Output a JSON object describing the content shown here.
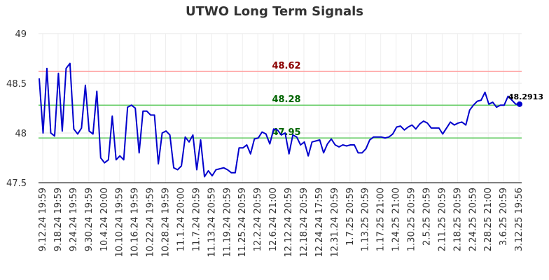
{
  "chart_data": {
    "type": "line",
    "title": "UTWO Long Term Signals",
    "xlabel": "",
    "ylabel": "",
    "ylim": [
      47.5,
      49
    ],
    "yticks": [
      "47.5",
      "48",
      "48.5",
      "49"
    ],
    "grid": true,
    "x_tick_labels": [
      "9.12.24 19:59",
      "9.18.24 19:59",
      "9.24.24 19:59",
      "9.30.24 19:59",
      "10.4.24 20:00",
      "10.10.24 19:59",
      "10.16.24 19:59",
      "10.22.24 19:59",
      "10.28.24 19:59",
      "11.1.24 20:00",
      "11.7.24 20:59",
      "11.13.24 20:59",
      "11.19.24 20:59",
      "11.25.24 20:59",
      "12.2.24 20:59",
      "12.6.24 21:00",
      "12.12.24 20:59",
      "12.18.24 20:59",
      "12.24.24 17:59",
      "12.31.24 20:59",
      "1.7.25 20:59",
      "1.13.25 20:59",
      "1.17.25 21:00",
      "1.24.25 21:00",
      "1.30.25 20:59",
      "2.5.25 20:59",
      "2.11.25 20:59",
      "2.18.25 20:59",
      "2.24.25 20:59",
      "2.28.25 21:00",
      "3.6.25 20:59",
      "3.12.25 19:56"
    ],
    "reference_lines": [
      {
        "label": "48.62",
        "value": 48.62,
        "color": "#ff9999",
        "text_color": "#8b0000"
      },
      {
        "label": "48.28",
        "value": 48.28,
        "color": "#66cc66",
        "text_color": "#006400"
      },
      {
        "label": "47.95",
        "value": 47.95,
        "color": "#66cc66",
        "text_color": "#006400"
      }
    ],
    "last_value_label": "48.2913",
    "series": [
      {
        "color": "#0000cc",
        "values": [
          48.55,
          48.0,
          48.65,
          48.0,
          47.97,
          48.6,
          48.02,
          48.65,
          48.7,
          48.04,
          47.99,
          48.05,
          48.48,
          48.02,
          47.99,
          48.42,
          47.75,
          47.7,
          47.73,
          48.17,
          47.73,
          47.77,
          47.73,
          48.26,
          48.28,
          48.25,
          47.8,
          48.22,
          48.22,
          48.18,
          48.18,
          47.69,
          48.0,
          48.02,
          47.98,
          47.65,
          47.63,
          47.67,
          47.96,
          47.91,
          47.98,
          47.63,
          47.93,
          47.56,
          47.62,
          47.57,
          47.63,
          47.64,
          47.65,
          47.63,
          47.6,
          47.6,
          47.85,
          47.85,
          47.88,
          47.79,
          47.94,
          47.95,
          48.01,
          47.99,
          47.89,
          48.04,
          48.03,
          47.98,
          48.0,
          47.79,
          47.98,
          47.96,
          47.88,
          47.91,
          47.77,
          47.91,
          47.92,
          47.93,
          47.8,
          47.89,
          47.94,
          47.88,
          47.86,
          47.88,
          47.87,
          47.88,
          47.88,
          47.8,
          47.8,
          47.84,
          47.93,
          47.96,
          47.96,
          47.96,
          47.95,
          47.96,
          47.99,
          48.06,
          48.07,
          48.03,
          48.06,
          48.08,
          48.04,
          48.09,
          48.12,
          48.1,
          48.05,
          48.05,
          48.05,
          47.99,
          48.05,
          48.11,
          48.08,
          48.1,
          48.11,
          48.08,
          48.23,
          48.28,
          48.32,
          48.33,
          48.41,
          48.29,
          48.31,
          48.26,
          48.28,
          48.28,
          48.37,
          48.33,
          48.29,
          48.29
        ]
      }
    ]
  }
}
